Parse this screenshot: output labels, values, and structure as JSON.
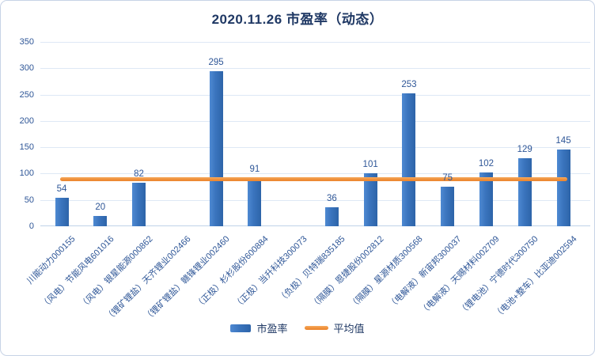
{
  "title": "2020.11.26  市盈率（动态）",
  "legend": {
    "series_label": "市盈率",
    "average_label": "平均值"
  },
  "colors": {
    "bar": "#3a74bd",
    "bar_gradient_light": "#4e89d2",
    "bar_gradient_dark": "#2d64a9",
    "average_line": "#ef903a",
    "title_text": "#1f3864",
    "axis_text": "#2e5697",
    "gridline": "#dee8f5",
    "axis_line": "#bfd3e9",
    "frame_border": "#c7d3e6"
  },
  "chart_data": {
    "type": "bar",
    "title": "2020.11.26  市盈率（动态）",
    "categories": [
      "川能动力000155",
      "（风电）节能风电601016",
      "（风电）银星能源000862",
      "（锂矿锂盐）天齐锂业002466",
      "（锂矿锂盐）赣锋锂业002460",
      "（正极）杉杉股份600884",
      "（正极）当升科技300073",
      "（负极）贝特瑞835185",
      "（隔膜）恩捷股份002812",
      "（隔膜）星源材质300568",
      "（电解液）新宙邦300037",
      "（电解液）天赐材料002709",
      "（锂电池）宁德时代300750",
      "（电池+整车）比亚迪002594"
    ],
    "series": [
      {
        "name": "市盈率",
        "values": [
          54,
          20,
          82,
          null,
          295,
          91,
          null,
          36,
          101,
          253,
          75,
          102,
          129,
          145
        ]
      }
    ],
    "average_line": {
      "name": "平均值",
      "value": 90
    },
    "xlabel": "",
    "ylabel": "",
    "ylim": [
      0,
      350
    ],
    "yticks": [
      0,
      50,
      100,
      150,
      200,
      250,
      300,
      350
    ],
    "grid": true,
    "legend_position": "bottom"
  }
}
